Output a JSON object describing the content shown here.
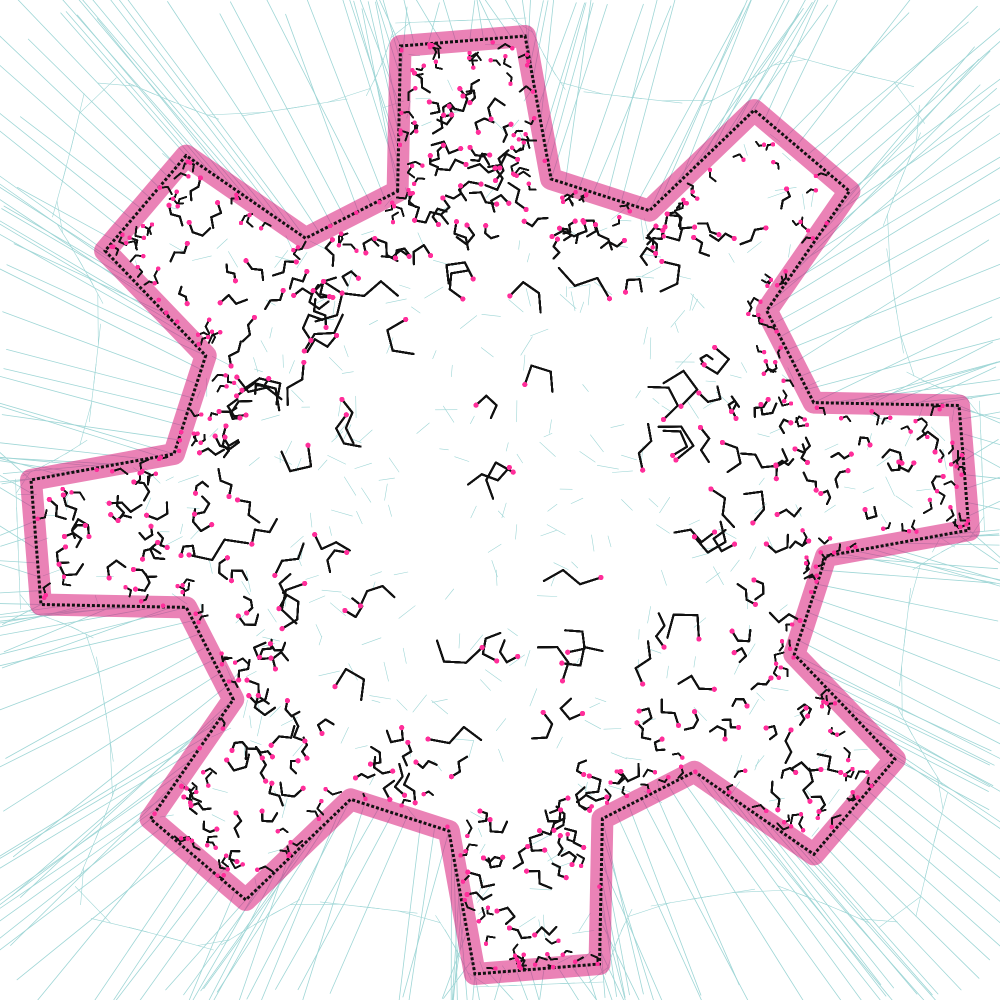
{
  "figure": {
    "kind": "gear-shaped tree growth / mesh visualization",
    "teeth_count": 8,
    "colors": {
      "background": "#ffffff",
      "mesh_lines": "#9fd6d6",
      "tree_branches": "#111111",
      "tree_nodes": "#ff2e9a",
      "dense_fill": "#d81b7a"
    }
  }
}
